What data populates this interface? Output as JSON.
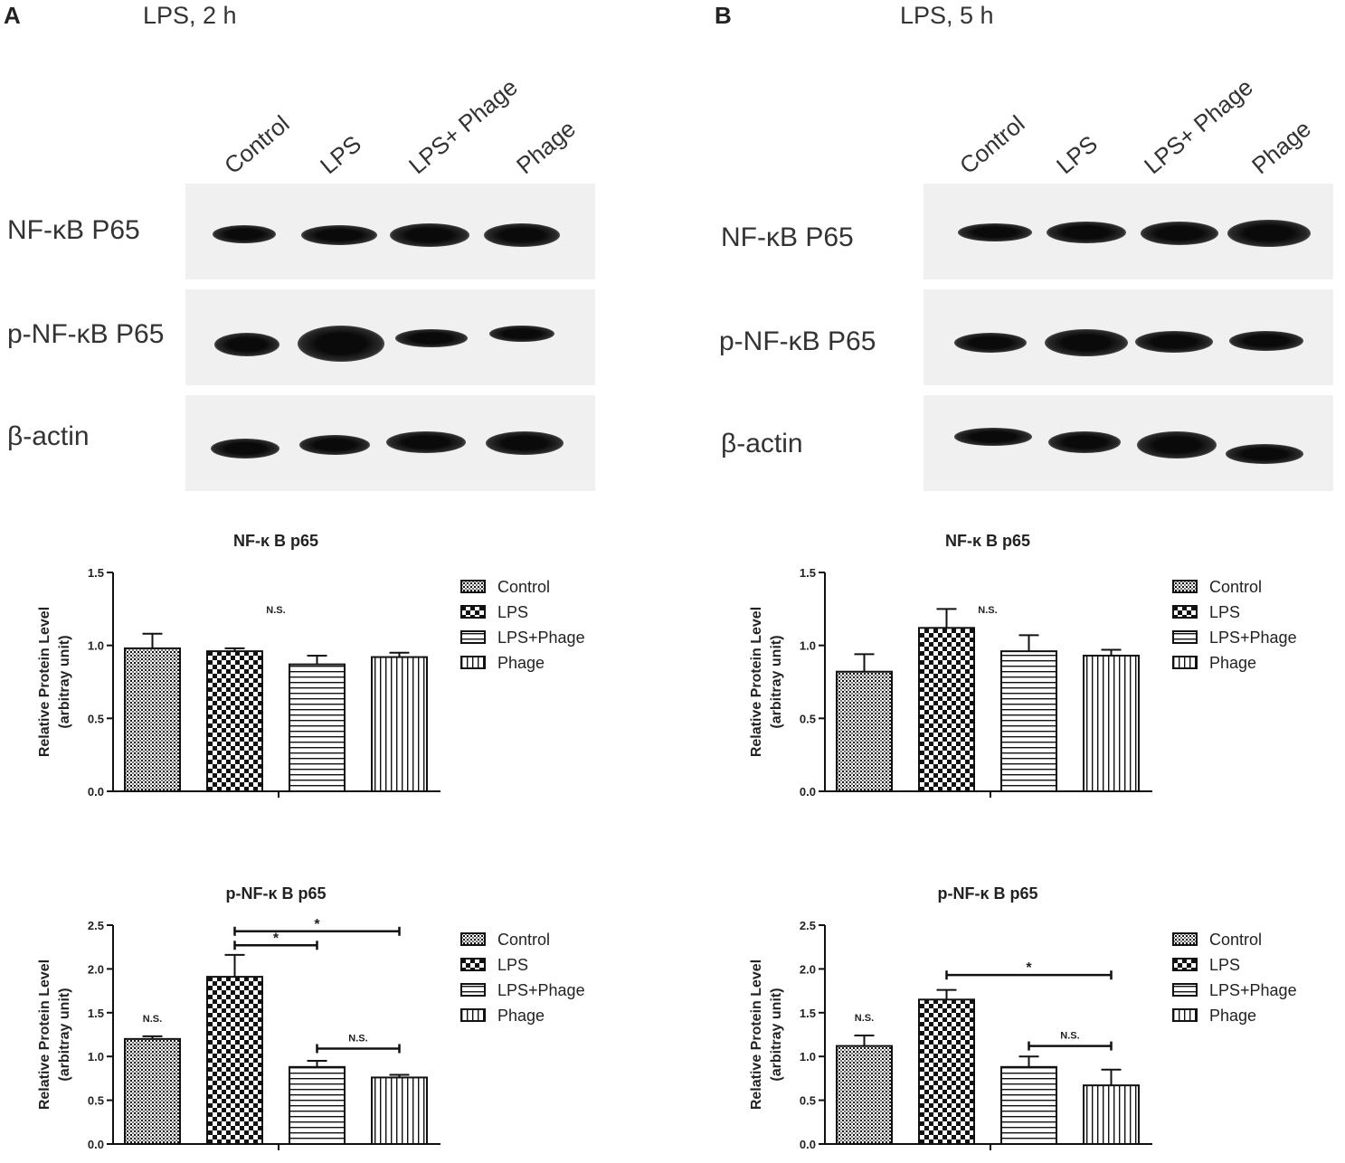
{
  "panels": [
    {
      "letter": "A",
      "title": "LPS, 2 h",
      "lanes": [
        "Control",
        "LPS",
        "LPS+ Phage",
        "Phage"
      ],
      "rows": [
        "NF-κB P65",
        "p-NF-κB P65",
        "β-actin"
      ]
    },
    {
      "letter": "B",
      "title": "LPS, 5 h",
      "lanes": [
        "Control",
        "LPS",
        "LPS+ Phage",
        "Phage"
      ],
      "rows": [
        "NF-κB P65",
        "p-NF-κB P65",
        "β-actin"
      ]
    }
  ],
  "legend": [
    "Control",
    "LPS",
    "LPS+Phage",
    "Phage"
  ],
  "colors": {
    "bar_outline": "#111111",
    "pattern": "#111111",
    "background": "#ffffff"
  },
  "chart_data": [
    {
      "type": "bar",
      "title": "NF-κ B p65",
      "ylabel": "Relative Protein Level",
      "ylabel2": "(arbitray unit)",
      "categories": [
        "Control",
        "LPS",
        "LPS+Phage",
        "Phage"
      ],
      "values": [
        0.98,
        0.96,
        0.87,
        0.92
      ],
      "errors": [
        0.1,
        0.02,
        0.06,
        0.03
      ],
      "ylim": [
        0,
        1.5
      ],
      "yticks": [
        "0.0",
        "0.5",
        "1.0",
        "1.5"
      ],
      "annotations": [
        {
          "text": "N.S.",
          "type": "overall"
        }
      ]
    },
    {
      "type": "bar",
      "title": "p-NF-κ B p65",
      "ylabel": "Relative Protein Level",
      "ylabel2": "(arbitray unit)",
      "categories": [
        "Control",
        "LPS",
        "LPS+Phage",
        "Phage"
      ],
      "values": [
        1.2,
        1.91,
        0.88,
        0.76
      ],
      "errors": [
        0.03,
        0.25,
        0.07,
        0.03
      ],
      "ylim": [
        0,
        2.5
      ],
      "yticks": [
        "0.0",
        "0.5",
        "1.0",
        "1.5",
        "2.0",
        "2.5"
      ],
      "annotations": [
        {
          "text": "N.S.",
          "type": "single",
          "bar": 0
        },
        {
          "text": "*",
          "type": "bracket",
          "from": 1,
          "to": 3,
          "y": 2.43
        },
        {
          "text": "*",
          "type": "bracket",
          "from": 1,
          "to": 2,
          "y": 2.27
        },
        {
          "text": "N.S.",
          "type": "bracket",
          "from": 2,
          "to": 3,
          "y": 1.09
        }
      ]
    },
    {
      "type": "bar",
      "title": "NF-κ B p65",
      "ylabel": "Relative Protein Level",
      "ylabel2": "(arbitray unit)",
      "categories": [
        "Control",
        "LPS",
        "LPS+Phage",
        "Phage"
      ],
      "values": [
        0.82,
        1.12,
        0.96,
        0.93
      ],
      "errors": [
        0.12,
        0.13,
        0.11,
        0.04
      ],
      "ylim": [
        0,
        1.5
      ],
      "yticks": [
        "0.0",
        "0.5",
        "1.0",
        "1.5"
      ],
      "annotations": [
        {
          "text": "N.S.",
          "type": "overall"
        }
      ]
    },
    {
      "type": "bar",
      "title": "p-NF-κ B p65",
      "ylabel": "Relative Protein Level",
      "ylabel2": "(arbitray unit)",
      "categories": [
        "Control",
        "LPS",
        "LPS+Phage",
        "Phage"
      ],
      "values": [
        1.12,
        1.65,
        0.88,
        0.67
      ],
      "errors": [
        0.12,
        0.11,
        0.12,
        0.18
      ],
      "ylim": [
        0,
        2.5
      ],
      "yticks": [
        "0.0",
        "0.5",
        "1.0",
        "1.5",
        "2.0",
        "2.5"
      ],
      "annotations": [
        {
          "text": "N.S.",
          "type": "single",
          "bar": 0
        },
        {
          "text": "*",
          "type": "bracket",
          "from": 1,
          "to": 3,
          "y": 1.93
        },
        {
          "text": "N.S.",
          "type": "bracket",
          "from": 2,
          "to": 3,
          "y": 1.12
        }
      ]
    }
  ]
}
